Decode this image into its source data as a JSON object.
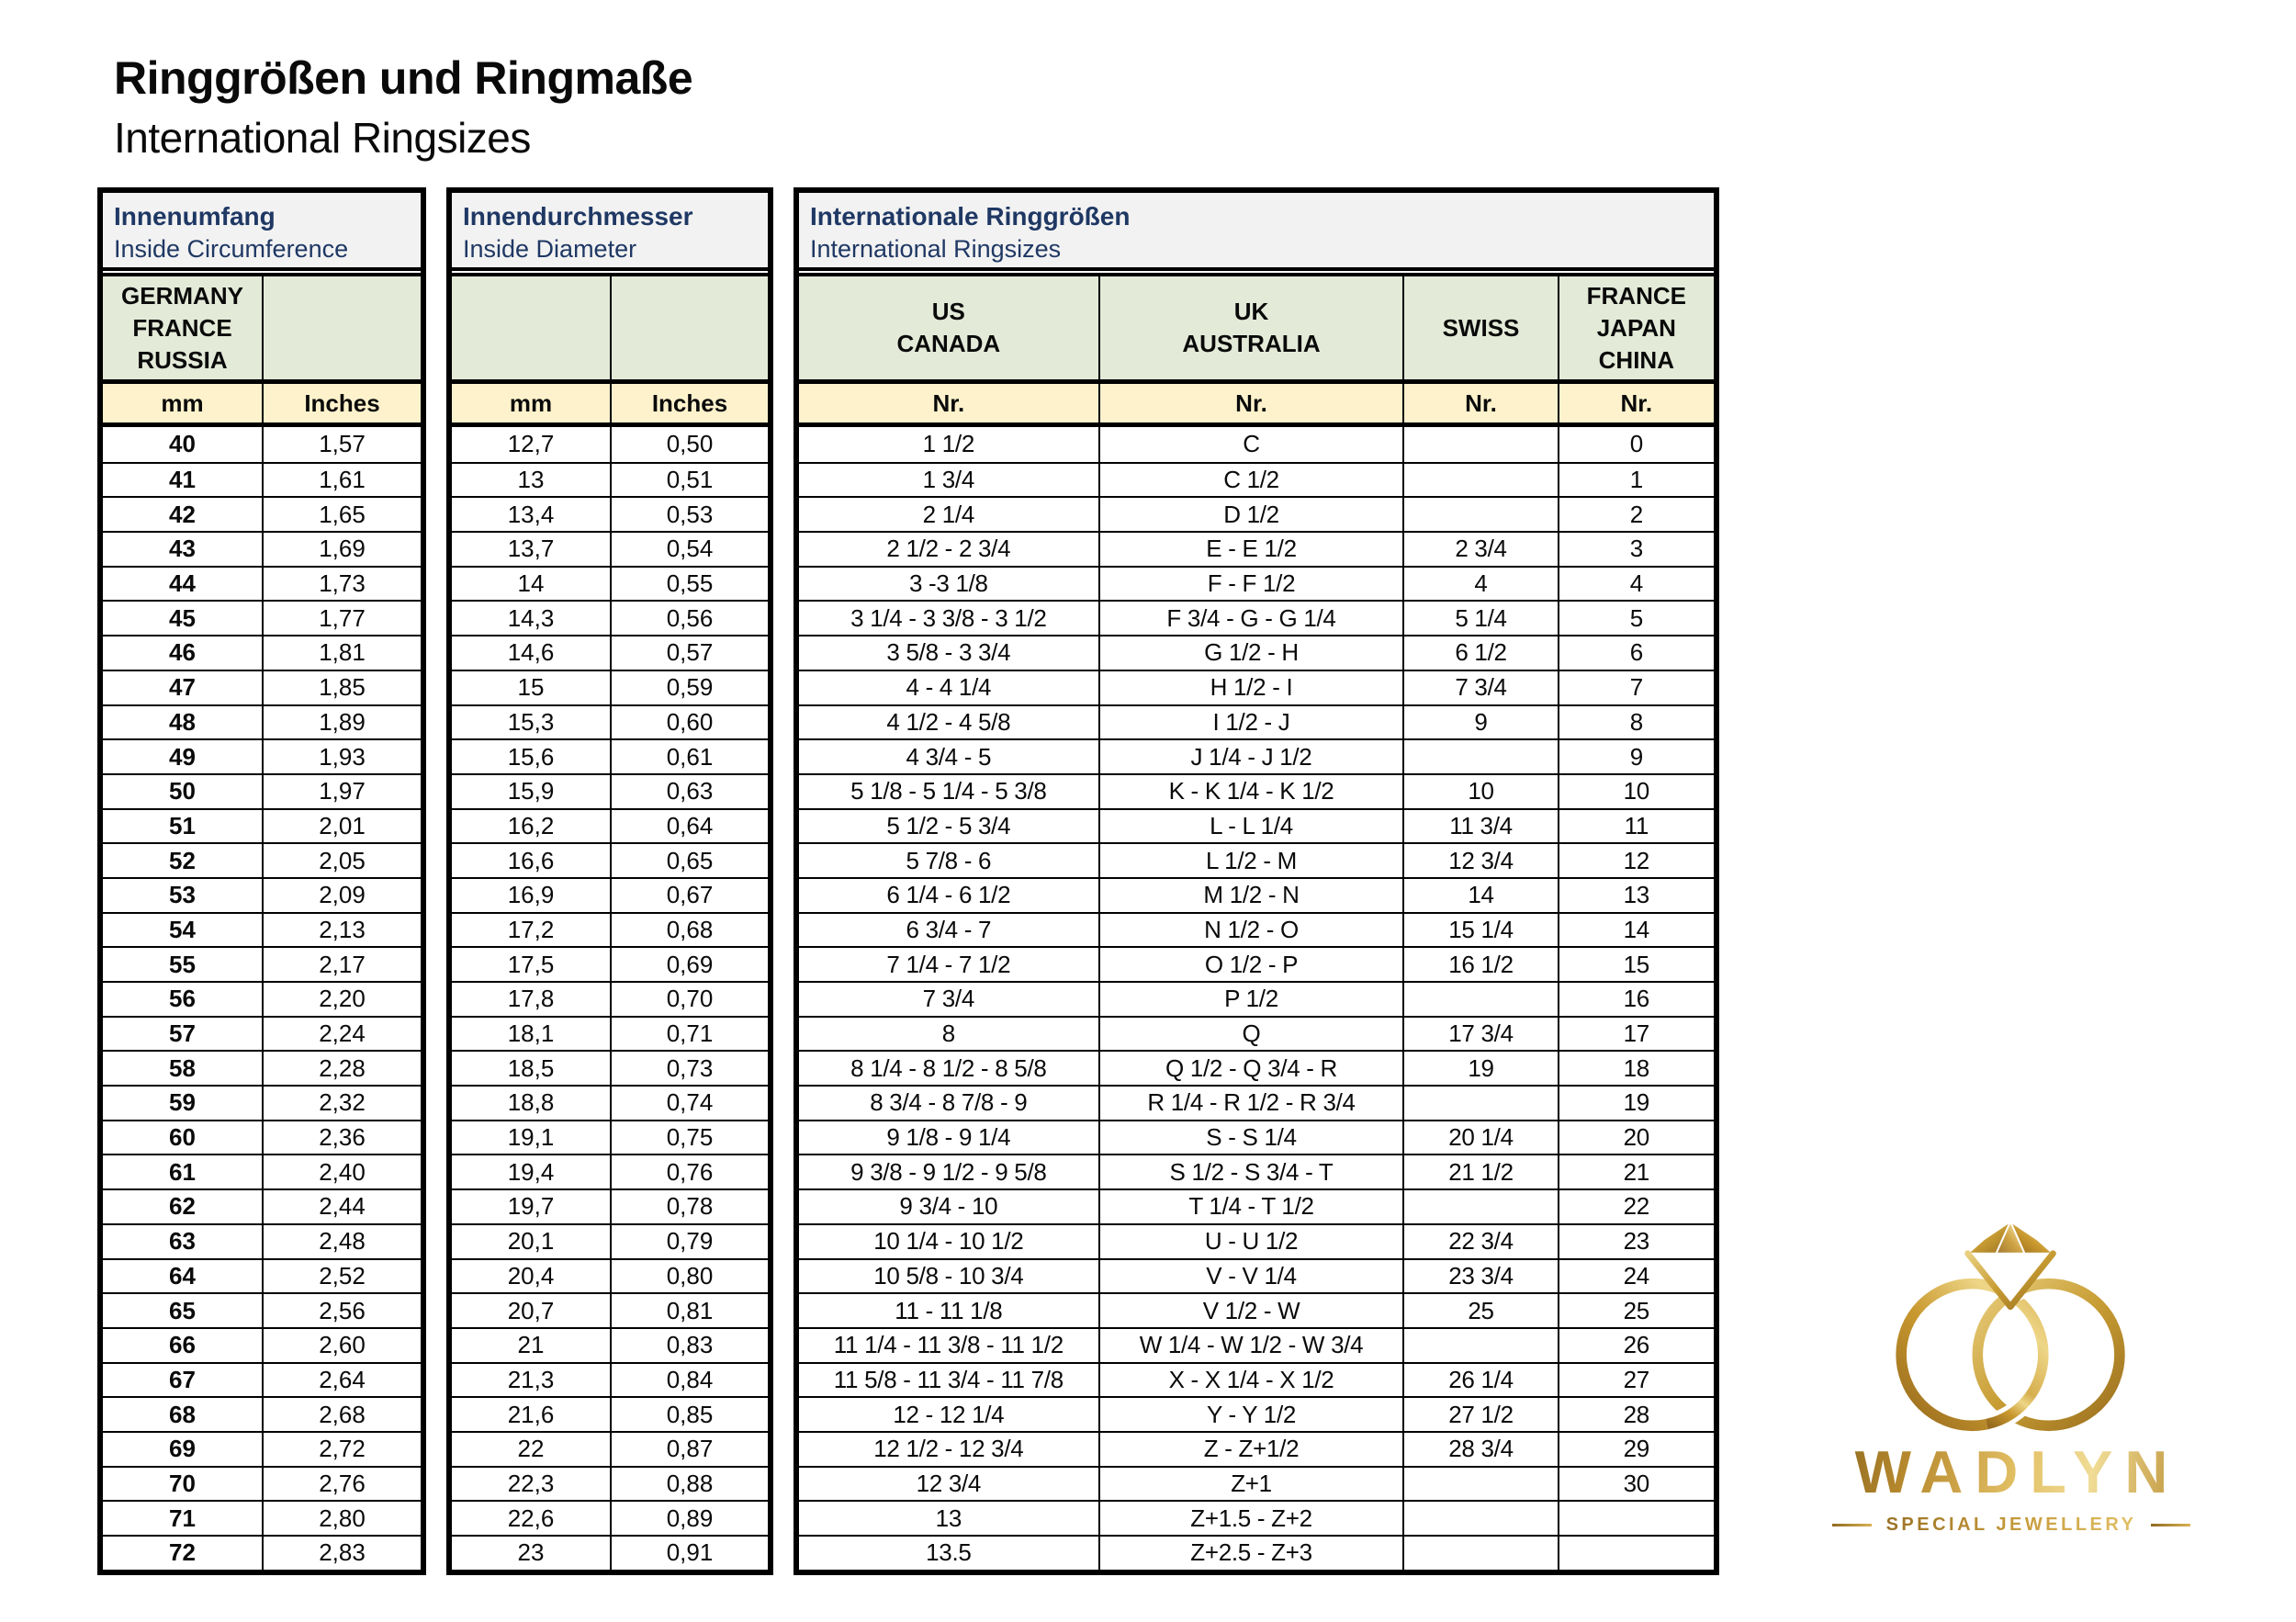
{
  "header": {
    "title": "Ringgrößen und Ringmaße",
    "subtitle": "International Ringsizes"
  },
  "tables": {
    "circumference": {
      "title_de": "Innenumfang",
      "title_en": "Inside Circumference",
      "region_cells": [
        [
          "GERMANY",
          "FRANCE",
          "RUSSIA"
        ],
        []
      ],
      "unit_cells": [
        "mm",
        "Inches"
      ],
      "rows": [
        [
          "40",
          "1,57"
        ],
        [
          "41",
          "1,61"
        ],
        [
          "42",
          "1,65"
        ],
        [
          "43",
          "1,69"
        ],
        [
          "44",
          "1,73"
        ],
        [
          "45",
          "1,77"
        ],
        [
          "46",
          "1,81"
        ],
        [
          "47",
          "1,85"
        ],
        [
          "48",
          "1,89"
        ],
        [
          "49",
          "1,93"
        ],
        [
          "50",
          "1,97"
        ],
        [
          "51",
          "2,01"
        ],
        [
          "52",
          "2,05"
        ],
        [
          "53",
          "2,09"
        ],
        [
          "54",
          "2,13"
        ],
        [
          "55",
          "2,17"
        ],
        [
          "56",
          "2,20"
        ],
        [
          "57",
          "2,24"
        ],
        [
          "58",
          "2,28"
        ],
        [
          "59",
          "2,32"
        ],
        [
          "60",
          "2,36"
        ],
        [
          "61",
          "2,40"
        ],
        [
          "62",
          "2,44"
        ],
        [
          "63",
          "2,48"
        ],
        [
          "64",
          "2,52"
        ],
        [
          "65",
          "2,56"
        ],
        [
          "66",
          "2,60"
        ],
        [
          "67",
          "2,64"
        ],
        [
          "68",
          "2,68"
        ],
        [
          "69",
          "2,72"
        ],
        [
          "70",
          "2,76"
        ],
        [
          "71",
          "2,80"
        ],
        [
          "72",
          "2,83"
        ]
      ]
    },
    "diameter": {
      "title_de": "Innendurchmesser",
      "title_en": "Inside Diameter",
      "region_cells": [
        [],
        []
      ],
      "unit_cells": [
        "mm",
        "Inches"
      ],
      "rows": [
        [
          "12,7",
          "0,50"
        ],
        [
          "13",
          "0,51"
        ],
        [
          "13,4",
          "0,53"
        ],
        [
          "13,7",
          "0,54"
        ],
        [
          "14",
          "0,55"
        ],
        [
          "14,3",
          "0,56"
        ],
        [
          "14,6",
          "0,57"
        ],
        [
          "15",
          "0,59"
        ],
        [
          "15,3",
          "0,60"
        ],
        [
          "15,6",
          "0,61"
        ],
        [
          "15,9",
          "0,63"
        ],
        [
          "16,2",
          "0,64"
        ],
        [
          "16,6",
          "0,65"
        ],
        [
          "16,9",
          "0,67"
        ],
        [
          "17,2",
          "0,68"
        ],
        [
          "17,5",
          "0,69"
        ],
        [
          "17,8",
          "0,70"
        ],
        [
          "18,1",
          "0,71"
        ],
        [
          "18,5",
          "0,73"
        ],
        [
          "18,8",
          "0,74"
        ],
        [
          "19,1",
          "0,75"
        ],
        [
          "19,4",
          "0,76"
        ],
        [
          "19,7",
          "0,78"
        ],
        [
          "20,1",
          "0,79"
        ],
        [
          "20,4",
          "0,80"
        ],
        [
          "20,7",
          "0,81"
        ],
        [
          "21",
          "0,83"
        ],
        [
          "21,3",
          "0,84"
        ],
        [
          "21,6",
          "0,85"
        ],
        [
          "22",
          "0,87"
        ],
        [
          "22,3",
          "0,88"
        ],
        [
          "22,6",
          "0,89"
        ],
        [
          "23",
          "0,91"
        ]
      ]
    },
    "international": {
      "title_de": "Internationale Ringgrößen",
      "title_en": "International Ringsizes",
      "region_cells": [
        [
          "US",
          "CANADA"
        ],
        [
          "UK",
          "AUSTRALIA"
        ],
        [
          "SWISS"
        ],
        [
          "FRANCE",
          "JAPAN",
          "CHINA"
        ]
      ],
      "unit_cells": [
        "Nr.",
        "Nr.",
        "Nr.",
        "Nr."
      ],
      "rows": [
        [
          "1 1/2",
          "C",
          "",
          "0"
        ],
        [
          "1 3/4",
          "C 1/2",
          "",
          "1"
        ],
        [
          "2 1/4",
          "D 1/2",
          "",
          "2"
        ],
        [
          "2 1/2 - 2 3/4",
          "E - E 1/2",
          "2 3/4",
          "3"
        ],
        [
          "3 -3 1/8",
          "F - F 1/2",
          "4",
          "4"
        ],
        [
          "3 1/4 - 3 3/8 - 3 1/2",
          "F 3/4 - G - G 1/4",
          "5 1/4",
          "5"
        ],
        [
          "3 5/8 - 3 3/4",
          "G 1/2 - H",
          "6 1/2",
          "6"
        ],
        [
          "4 - 4 1/4",
          "H 1/2 - I",
          "7 3/4",
          "7"
        ],
        [
          "4 1/2  - 4 5/8",
          "I 1/2 - J",
          "9",
          "8"
        ],
        [
          "4 3/4 - 5",
          "J 1/4 - J 1/2",
          "",
          "9"
        ],
        [
          "5 1/8  - 5 1/4 - 5 3/8",
          "K - K 1/4 - K 1/2",
          "10",
          "10"
        ],
        [
          "5 1/2 - 5 3/4",
          "L - L 1/4",
          "11 3/4",
          "11"
        ],
        [
          "5 7/8 - 6",
          "L 1/2 - M",
          "12 3/4",
          "12"
        ],
        [
          "6 1/4 - 6 1/2",
          "M 1/2 - N",
          "14",
          "13"
        ],
        [
          "6 3/4 - 7",
          "N 1/2 - O",
          "15 1/4",
          "14"
        ],
        [
          "7 1/4 - 7 1/2",
          "O 1/2 - P",
          "16 1/2",
          "15"
        ],
        [
          "7 3/4",
          "P 1/2",
          "",
          "16"
        ],
        [
          "8",
          "Q",
          "17 3/4",
          "17"
        ],
        [
          "8 1/4 - 8 1/2 - 8 5/8",
          "Q 1/2  - Q 3/4 - R",
          "19",
          "18"
        ],
        [
          "8 3/4 - 8 7/8 - 9",
          "R 1/4 - R 1/2 - R 3/4",
          "",
          "19"
        ],
        [
          "9 1/8 - 9 1/4",
          "S - S 1/4",
          "20 1/4",
          "20"
        ],
        [
          "9 3/8 - 9 1/2 - 9 5/8",
          "S 1/2 - S 3/4 - T",
          "21 1/2",
          "21"
        ],
        [
          "9 3/4 - 10",
          "T 1/4 - T 1/2",
          "",
          "22"
        ],
        [
          "10 1/4 - 10 1/2",
          "U - U 1/2",
          "22 3/4",
          "23"
        ],
        [
          "10 5/8 - 10 3/4",
          "V - V 1/4",
          "23 3/4",
          "24"
        ],
        [
          "11 - 11 1/8",
          "V 1/2 - W",
          "25",
          "25"
        ],
        [
          "11 1/4 - 11 3/8 - 11 1/2",
          "W 1/4 - W 1/2 - W 3/4",
          "",
          "26"
        ],
        [
          "11 5/8 - 11 3/4 - 11 7/8",
          "X - X 1/4 - X 1/2",
          "26 1/4",
          "27"
        ],
        [
          "12 - 12 1/4",
          "Y - Y 1/2",
          "27 1/2",
          "28"
        ],
        [
          "12 1/2 - 12 3/4",
          "Z - Z+1/2",
          "28 3/4",
          "29"
        ],
        [
          "12 3/4",
          "Z+1",
          "",
          "30"
        ],
        [
          "13",
          "Z+1.5 - Z+2",
          "",
          ""
        ],
        [
          "13.5",
          "Z+2.5 - Z+3",
          "",
          ""
        ]
      ]
    }
  },
  "logo": {
    "brand": "WADLYN",
    "tagline": "SPECIAL JEWELLERY"
  },
  "colors": {
    "heading_navy": "#1f3864",
    "title_box_gray": "#f2f2f2",
    "region_green": "#e3ead8",
    "unit_cream": "#fdf2cc",
    "border_black": "#000000",
    "gold_dark": "#96691d",
    "gold_mid": "#c9992f",
    "gold_light": "#eed688"
  }
}
